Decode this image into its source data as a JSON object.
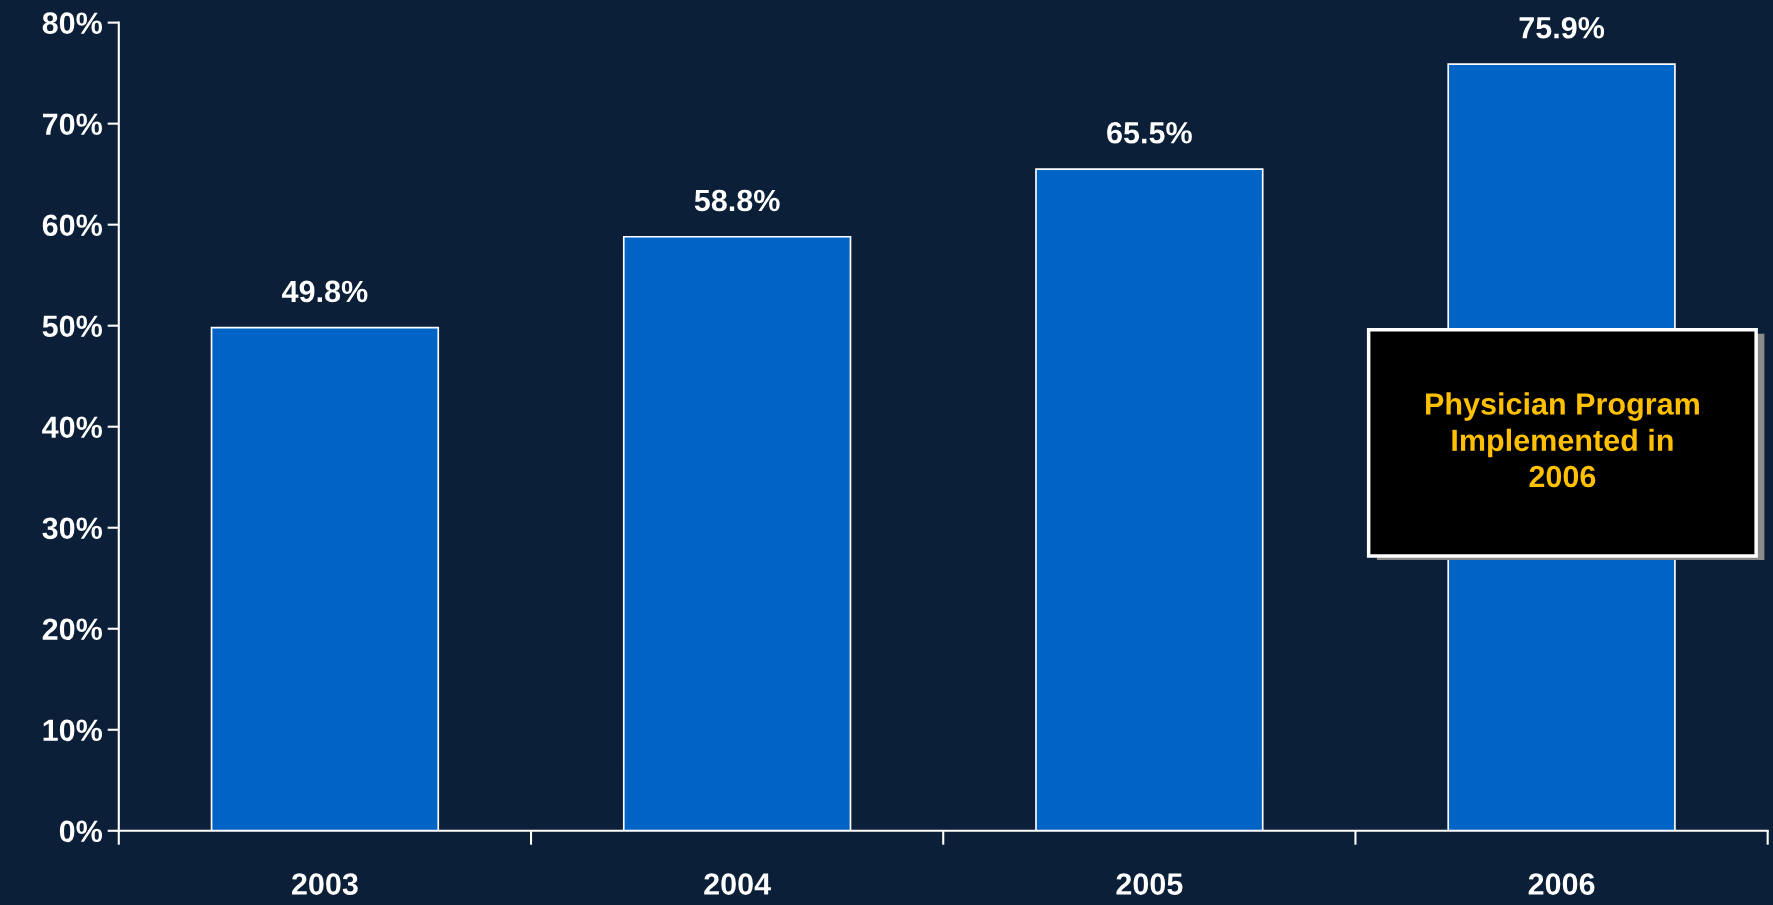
{
  "chart_data": {
    "type": "bar",
    "categories": [
      "2003",
      "2004",
      "2005",
      "2006"
    ],
    "values": [
      49.8,
      58.8,
      65.5,
      75.9
    ],
    "value_labels": [
      "49.8%",
      "58.8%",
      "65.5%",
      "75.9%"
    ],
    "color": "#0063c6",
    "ylim": [
      0,
      80
    ],
    "yticks": [
      {
        "value": 0,
        "label": "0%"
      },
      {
        "value": 10,
        "label": "10%"
      },
      {
        "value": 20,
        "label": "20%"
      },
      {
        "value": 30,
        "label": "30%"
      },
      {
        "value": 40,
        "label": "40%"
      },
      {
        "value": 50,
        "label": "50%"
      },
      {
        "value": 60,
        "label": "60%"
      },
      {
        "value": 70,
        "label": "70%"
      },
      {
        "value": 80,
        "label": "80%"
      }
    ],
    "annotations": [
      "Physician Program\nImplemented in\n2006"
    ],
    "grid": false,
    "legend": false
  }
}
